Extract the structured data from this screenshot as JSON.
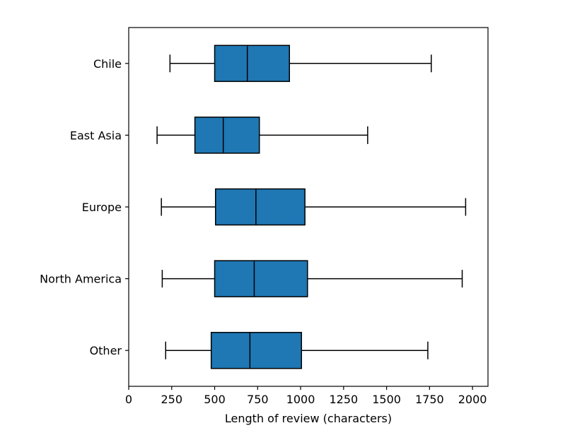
{
  "chart_data": {
    "type": "boxplot",
    "orientation": "horizontal",
    "xlabel": "Length of review (characters)",
    "xlim": [
      0,
      2090
    ],
    "xticks": [
      0,
      250,
      500,
      750,
      1000,
      1250,
      1500,
      1750,
      2000
    ],
    "grid": false,
    "categories": [
      "Chile",
      "East Asia",
      "Europe",
      "North America",
      "Other"
    ],
    "boxes": [
      {
        "label": "Chile",
        "whislo": 240,
        "q1": 500,
        "med": 690,
        "q3": 935,
        "whishi": 1760
      },
      {
        "label": "East Asia",
        "whislo": 165,
        "q1": 385,
        "med": 550,
        "q3": 760,
        "whishi": 1390
      },
      {
        "label": "Europe",
        "whislo": 190,
        "q1": 505,
        "med": 740,
        "q3": 1025,
        "whishi": 1960
      },
      {
        "label": "North America",
        "whislo": 195,
        "q1": 500,
        "med": 730,
        "q3": 1040,
        "whishi": 1940
      },
      {
        "label": "Other",
        "whislo": 215,
        "q1": 480,
        "med": 705,
        "q3": 1005,
        "whishi": 1740
      }
    ],
    "colors": {
      "box_fill": "#1f77b4",
      "line": "#000000"
    }
  }
}
